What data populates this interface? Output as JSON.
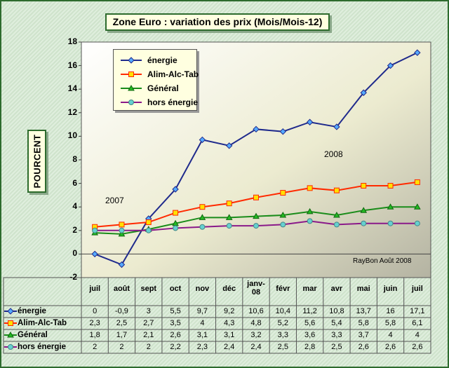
{
  "chart_data": {
    "type": "line",
    "title": "Zone Euro : variation des prix (Mois/Mois-12)",
    "ylabel": "POURCENT",
    "xlabel": "",
    "ylim": [
      -2,
      18
    ],
    "yticks": [
      "18",
      "16",
      "14",
      "12",
      "10",
      "8",
      "6",
      "4",
      "2",
      "0",
      "-2"
    ],
    "categories": [
      "juil",
      "août",
      "sept",
      "oct",
      "nov",
      "déc",
      "janv-08",
      "févr",
      "mar",
      "avr",
      "mai",
      "juin",
      "juil"
    ],
    "series": [
      {
        "name": "énergie",
        "color": "#1f2a8c",
        "marker": "diamond",
        "marker_color": "#55aaff",
        "values": [
          0,
          -0.9,
          3,
          5.5,
          9.7,
          9.2,
          10.6,
          10.4,
          11.2,
          10.8,
          13.7,
          16,
          17.1
        ],
        "labels": [
          "0",
          "-0,9",
          "3",
          "5,5",
          "9,7",
          "9,2",
          "10,6",
          "10,4",
          "11,2",
          "10,8",
          "13,7",
          "16",
          "17,1"
        ]
      },
      {
        "name": "Alim-Alc-Tab",
        "color": "#ff2a00",
        "marker": "square",
        "marker_color": "#ffe000",
        "values": [
          2.3,
          2.5,
          2.7,
          3.5,
          4,
          4.3,
          4.8,
          5.2,
          5.6,
          5.4,
          5.8,
          5.8,
          6.1
        ],
        "labels": [
          "2,3",
          "2,5",
          "2,7",
          "3,5",
          "4",
          "4,3",
          "4,8",
          "5,2",
          "5,6",
          "5,4",
          "5,8",
          "5,8",
          "6,1"
        ]
      },
      {
        "name": "Général",
        "color": "#1a8c1a",
        "marker": "triangle",
        "marker_color": "#22bb22",
        "values": [
          1.8,
          1.7,
          2.1,
          2.6,
          3.1,
          3.1,
          3.2,
          3.3,
          3.6,
          3.3,
          3.7,
          4,
          4
        ],
        "labels": [
          "1,8",
          "1,7",
          "2,1",
          "2,6",
          "3,1",
          "3,1",
          "3,2",
          "3,3",
          "3,6",
          "3,3",
          "3,7",
          "4",
          "4"
        ]
      },
      {
        "name": "hors énergie",
        "color": "#8a1a8a",
        "marker": "circle",
        "marker_color": "#66d0d0",
        "values": [
          2,
          2,
          2,
          2.2,
          2.3,
          2.4,
          2.4,
          2.5,
          2.8,
          2.5,
          2.6,
          2.6,
          2.6
        ],
        "labels": [
          "2",
          "2",
          "2",
          "2,2",
          "2,3",
          "2,4",
          "2,4",
          "2,5",
          "2,8",
          "2,5",
          "2,6",
          "2,6",
          "2,6"
        ]
      }
    ],
    "annotations": [
      "2007",
      "2008",
      "RayBon Août 2008"
    ],
    "grid": false,
    "legend": "top-left"
  }
}
